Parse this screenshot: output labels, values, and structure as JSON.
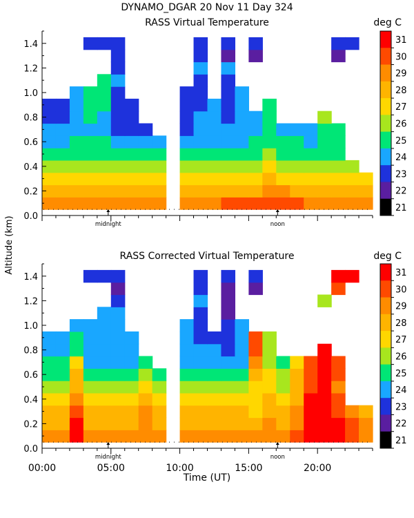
{
  "header": {
    "title": "DYNAMO_DGAR  20 Nov 11 Day 324"
  },
  "colorbar": {
    "unit": "deg C",
    "levels": [
      31,
      30,
      29,
      28,
      27,
      26,
      25,
      24,
      23,
      22,
      21
    ],
    "colors": [
      "#ff0000",
      "#ff4a00",
      "#ff8c00",
      "#ffb400",
      "#ffd700",
      "#a8e61e",
      "#00e676",
      "#19a7ff",
      "#1e32dc",
      "#5a1ea0",
      "#000000"
    ]
  },
  "axes": {
    "ylabel": "Altitude (km)",
    "xlabel": "Time (UT)",
    "yticks": [
      "1.4",
      "1.2",
      "1.0",
      "0.8",
      "0.6",
      "0.4",
      "0.2",
      "0.0"
    ],
    "xticks": [
      "00:00",
      "05:00",
      "10:00",
      "15:00",
      "20:00"
    ],
    "marker_midnight": "midnight",
    "marker_noon": "noon"
  },
  "chart_data": [
    {
      "type": "heatmap",
      "title": "RASS Virtual Temperature",
      "xlabel": "Time (UT)",
      "ylabel": "Altitude (km)",
      "xlim": [
        0,
        24
      ],
      "ylim": [
        0,
        1.5
      ],
      "zlim": [
        21,
        32
      ],
      "zlabel": "deg C",
      "time_h": [
        0,
        1,
        2,
        3,
        4,
        5,
        6,
        7,
        8,
        9,
        10,
        11,
        12,
        13,
        14,
        15,
        16,
        17,
        18,
        19,
        20,
        21,
        22,
        23
      ],
      "altitude_km": [
        0.1,
        0.2,
        0.3,
        0.4,
        0.5,
        0.6,
        0.7,
        0.8,
        0.9,
        1.0,
        1.1,
        1.2,
        1.3,
        1.4
      ],
      "temperature_c": [
        [
          29,
          29,
          29,
          29,
          29,
          29,
          29,
          29,
          29,
          null,
          29,
          29,
          29,
          30,
          30,
          30,
          30,
          30,
          30,
          29,
          29,
          29,
          29,
          29
        ],
        [
          28,
          28,
          28,
          28,
          28,
          28,
          28,
          28,
          28,
          null,
          28,
          28,
          28,
          28,
          28,
          28,
          29,
          29,
          28,
          28,
          28,
          28,
          28,
          28
        ],
        [
          27,
          27,
          27,
          27,
          27,
          27,
          27,
          27,
          27,
          null,
          27,
          27,
          27,
          27,
          27,
          27,
          28,
          27,
          27,
          27,
          27,
          27,
          27,
          27
        ],
        [
          26,
          26,
          26,
          26,
          26,
          26,
          26,
          26,
          26,
          null,
          26,
          26,
          26,
          26,
          26,
          26,
          27,
          26,
          26,
          26,
          26,
          26,
          26,
          null
        ],
        [
          25,
          25,
          25,
          25,
          25,
          25,
          25,
          25,
          25,
          null,
          25,
          25,
          25,
          25,
          25,
          25,
          26,
          25,
          25,
          25,
          25,
          25,
          null,
          null
        ],
        [
          24,
          24,
          25,
          25,
          25,
          24,
          24,
          24,
          24,
          null,
          24,
          24,
          24,
          24,
          24,
          25,
          25,
          25,
          25,
          24,
          25,
          25,
          null,
          null
        ],
        [
          24,
          24,
          24,
          24,
          24,
          23,
          23,
          23,
          null,
          null,
          23,
          24,
          24,
          24,
          24,
          24,
          25,
          24,
          24,
          24,
          25,
          25,
          null,
          null
        ],
        [
          23,
          23,
          24,
          25,
          24,
          23,
          23,
          null,
          null,
          null,
          23,
          24,
          24,
          23,
          24,
          24,
          25,
          null,
          null,
          null,
          26,
          null,
          null,
          null
        ],
        [
          23,
          23,
          24,
          25,
          25,
          23,
          23,
          null,
          null,
          null,
          23,
          23,
          24,
          23,
          24,
          null,
          25,
          null,
          null,
          null,
          null,
          null,
          null,
          null
        ],
        [
          null,
          null,
          24,
          25,
          25,
          23,
          null,
          null,
          null,
          null,
          23,
          23,
          null,
          23,
          24,
          null,
          null,
          null,
          null,
          null,
          null,
          null,
          null,
          null
        ],
        [
          null,
          null,
          null,
          null,
          25,
          24,
          null,
          null,
          null,
          null,
          null,
          23,
          null,
          23,
          null,
          null,
          null,
          null,
          null,
          null,
          null,
          null,
          null,
          null
        ],
        [
          null,
          null,
          null,
          null,
          null,
          23,
          null,
          null,
          null,
          null,
          null,
          24,
          null,
          24,
          null,
          null,
          null,
          null,
          null,
          null,
          null,
          null,
          null,
          null
        ],
        [
          null,
          null,
          null,
          null,
          null,
          23,
          null,
          null,
          null,
          null,
          null,
          23,
          null,
          22,
          null,
          22,
          null,
          null,
          null,
          null,
          null,
          22,
          null,
          null
        ],
        [
          null,
          null,
          null,
          23,
          23,
          23,
          null,
          null,
          null,
          null,
          null,
          23,
          null,
          23,
          null,
          23,
          null,
          null,
          null,
          null,
          null,
          23,
          23,
          null
        ]
      ]
    },
    {
      "type": "heatmap",
      "title": "RASS Corrected Virtual Temperature",
      "xlabel": "Time (UT)",
      "ylabel": "Altitude (km)",
      "xlim": [
        0,
        24
      ],
      "ylim": [
        0,
        1.5
      ],
      "zlim": [
        21,
        32
      ],
      "zlabel": "deg C",
      "time_h": [
        0,
        1,
        2,
        3,
        4,
        5,
        6,
        7,
        8,
        9,
        10,
        11,
        12,
        13,
        14,
        15,
        16,
        17,
        18,
        19,
        20,
        21,
        22,
        23
      ],
      "altitude_km": [
        0.1,
        0.2,
        0.3,
        0.4,
        0.5,
        0.6,
        0.7,
        0.8,
        0.9,
        1.0,
        1.1,
        1.2,
        1.3,
        1.4
      ],
      "temperature_c": [
        [
          29,
          29,
          31,
          29,
          29,
          29,
          29,
          29,
          29,
          null,
          29,
          29,
          29,
          29,
          29,
          29,
          29,
          29,
          30,
          31,
          31,
          31,
          30,
          29
        ],
        [
          28,
          28,
          31,
          28,
          28,
          28,
          28,
          29,
          28,
          null,
          28,
          28,
          28,
          28,
          28,
          28,
          29,
          28,
          29,
          31,
          31,
          31,
          30,
          29
        ],
        [
          28,
          28,
          30,
          28,
          28,
          28,
          28,
          29,
          28,
          null,
          28,
          28,
          28,
          28,
          28,
          27,
          28,
          28,
          29,
          31,
          31,
          30,
          29,
          28
        ],
        [
          27,
          27,
          29,
          27,
          27,
          27,
          27,
          28,
          27,
          null,
          27,
          27,
          27,
          27,
          27,
          27,
          28,
          27,
          28,
          31,
          31,
          30,
          null,
          null
        ],
        [
          26,
          26,
          28,
          26,
          26,
          26,
          26,
          27,
          26,
          null,
          26,
          26,
          26,
          26,
          26,
          27,
          27,
          26,
          28,
          30,
          31,
          29,
          null,
          null
        ],
        [
          25,
          25,
          28,
          25,
          25,
          25,
          25,
          26,
          25,
          null,
          25,
          25,
          25,
          25,
          25,
          28,
          27,
          26,
          28,
          30,
          31,
          30,
          null,
          null
        ],
        [
          25,
          25,
          27,
          24,
          24,
          24,
          24,
          25,
          null,
          null,
          24,
          24,
          24,
          24,
          24,
          29,
          26,
          25,
          27,
          30,
          31,
          30,
          null,
          null
        ],
        [
          24,
          24,
          25,
          24,
          24,
          24,
          24,
          null,
          null,
          null,
          24,
          24,
          24,
          23,
          24,
          30,
          26,
          null,
          null,
          null,
          31,
          null,
          null,
          null
        ],
        [
          24,
          24,
          25,
          24,
          24,
          24,
          24,
          null,
          null,
          null,
          24,
          23,
          23,
          23,
          24,
          30,
          26,
          null,
          null,
          null,
          null,
          null,
          null,
          null
        ],
        [
          null,
          null,
          24,
          24,
          24,
          24,
          null,
          null,
          null,
          null,
          24,
          23,
          null,
          23,
          24,
          null,
          null,
          null,
          null,
          null,
          null,
          null,
          null,
          null
        ],
        [
          null,
          null,
          null,
          null,
          24,
          24,
          null,
          null,
          null,
          null,
          null,
          23,
          null,
          22,
          null,
          null,
          null,
          null,
          null,
          null,
          null,
          null,
          null,
          null
        ],
        [
          null,
          null,
          null,
          null,
          null,
          23,
          null,
          null,
          null,
          null,
          null,
          24,
          null,
          22,
          null,
          null,
          null,
          null,
          null,
          null,
          26,
          null,
          null,
          null
        ],
        [
          null,
          null,
          null,
          null,
          null,
          22,
          null,
          null,
          null,
          null,
          null,
          23,
          null,
          22,
          null,
          22,
          null,
          null,
          null,
          null,
          null,
          30,
          null,
          null
        ],
        [
          null,
          null,
          null,
          23,
          23,
          23,
          null,
          null,
          null,
          null,
          null,
          23,
          null,
          23,
          null,
          23,
          null,
          null,
          null,
          null,
          null,
          31,
          31,
          null
        ]
      ]
    }
  ]
}
